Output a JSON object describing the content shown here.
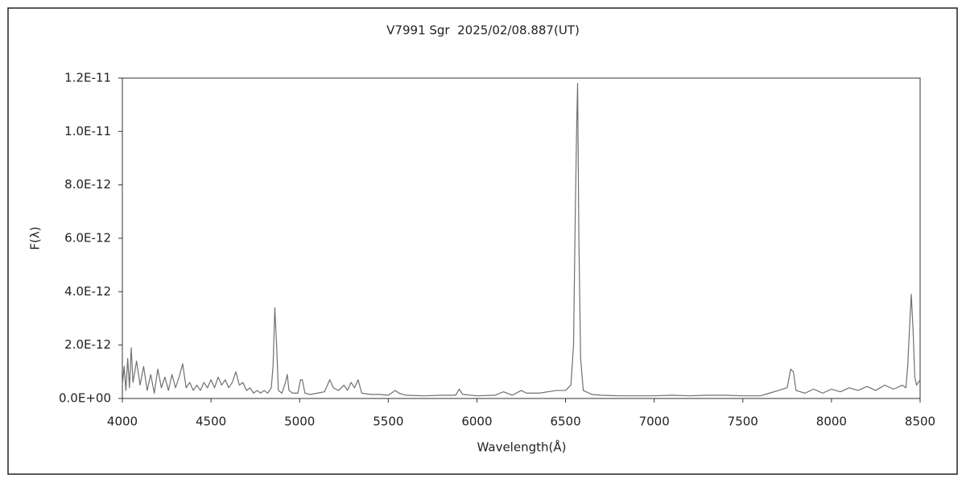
{
  "chart_data": {
    "type": "line",
    "title": "V7991 Sgr  2025/02/08.887(UT)",
    "xlabel": "Wavelength(Å)",
    "ylabel": "F(λ)",
    "color": "#707070",
    "xlim": [
      4000,
      8500
    ],
    "xticks": [
      4000,
      4500,
      5000,
      5500,
      6000,
      6500,
      7000,
      7500,
      8000,
      8500
    ],
    "ylim": [
      0,
      1.2e-11
    ],
    "yticks": [
      {
        "value": 0,
        "label": "0.0E+00"
      },
      {
        "value": 2e-12,
        "label": "2.0E-12"
      },
      {
        "value": 4e-12,
        "label": "4.0E-12"
      },
      {
        "value": 6e-12,
        "label": "6.0E-12"
      },
      {
        "value": 8e-12,
        "label": "8.0E-12"
      },
      {
        "value": 1e-11,
        "label": "1.0E-11"
      },
      {
        "value": 1.2e-11,
        "label": "1.2E-11"
      }
    ],
    "grid": false,
    "x": [
      4000,
      4010,
      4020,
      4030,
      4040,
      4050,
      4060,
      4080,
      4100,
      4120,
      4140,
      4160,
      4180,
      4200,
      4220,
      4240,
      4260,
      4280,
      4300,
      4320,
      4340,
      4360,
      4380,
      4400,
      4420,
      4440,
      4460,
      4480,
      4500,
      4520,
      4540,
      4560,
      4580,
      4600,
      4620,
      4640,
      4660,
      4680,
      4700,
      4720,
      4740,
      4760,
      4780,
      4800,
      4820,
      4840,
      4850,
      4860,
      4870,
      4880,
      4900,
      4920,
      4930,
      4940,
      4960,
      4990,
      5005,
      5015,
      5030,
      5060,
      5100,
      5140,
      5170,
      5190,
      5220,
      5250,
      5270,
      5290,
      5310,
      5330,
      5350,
      5400,
      5450,
      5500,
      5540,
      5560,
      5600,
      5700,
      5800,
      5880,
      5900,
      5920,
      6000,
      6100,
      6150,
      6200,
      6250,
      6280,
      6300,
      6350,
      6400,
      6450,
      6500,
      6530,
      6545,
      6555,
      6563,
      6568,
      6575,
      6585,
      6600,
      6650,
      6700,
      6800,
      6900,
      7000,
      7100,
      7200,
      7300,
      7400,
      7500,
      7600,
      7650,
      7700,
      7750,
      7770,
      7785,
      7800,
      7850,
      7900,
      7950,
      8000,
      8050,
      8100,
      8150,
      8200,
      8250,
      8300,
      8350,
      8400,
      8420,
      8430,
      8440,
      8450,
      8460,
      8470,
      8480,
      8490,
      8500
    ],
    "values": [
      5e-13,
      1.2e-12,
      3e-13,
      1.5e-12,
      4e-13,
      1.9e-12,
      6e-13,
      1.4e-12,
      5e-13,
      1.2e-12,
      3e-13,
      9e-13,
      2e-13,
      1.1e-12,
      4e-13,
      8e-13,
      3e-13,
      9e-13,
      4e-13,
      8e-13,
      1.3e-12,
      4e-13,
      6e-13,
      3e-13,
      5e-13,
      3e-13,
      6e-13,
      4e-13,
      7e-13,
      4e-13,
      8e-13,
      5e-13,
      7e-13,
      4e-13,
      6e-13,
      1e-12,
      5e-13,
      6e-13,
      3e-13,
      4e-13,
      2e-13,
      3e-13,
      2e-13,
      3e-13,
      2e-13,
      4e-13,
      1.2e-12,
      3.4e-12,
      2e-12,
      3e-13,
      2e-13,
      6e-13,
      9e-13,
      3e-13,
      2e-13,
      2e-13,
      7e-13,
      7e-13,
      2e-13,
      1.5e-13,
      2e-13,
      2.5e-13,
      7e-13,
      4e-13,
      3e-13,
      5e-13,
      3e-13,
      6e-13,
      4e-13,
      7e-13,
      2e-13,
      1.5e-13,
      1.5e-13,
      1.2e-13,
      3e-13,
      2e-13,
      1.2e-13,
      1e-13,
      1.2e-13,
      1.2e-13,
      3.5e-13,
      1.5e-13,
      1e-13,
      1.2e-13,
      2.5e-13,
      1.2e-13,
      3e-13,
      2e-13,
      2e-13,
      2e-13,
      2.5e-13,
      3e-13,
      3e-13,
      5e-13,
      2e-12,
      7e-12,
      1.03e-11,
      1.18e-11,
      6e-12,
      1.5e-12,
      3e-13,
      1.5e-13,
      1.2e-13,
      1e-13,
      1e-13,
      1e-13,
      1.2e-13,
      1e-13,
      1.2e-13,
      1.2e-13,
      1e-13,
      1e-13,
      2e-13,
      3e-13,
      4e-13,
      1.1e-12,
      1e-12,
      3e-13,
      2e-13,
      3.5e-13,
      2e-13,
      3.5e-13,
      2.5e-13,
      4e-13,
      3e-13,
      4.5e-13,
      3e-13,
      5e-13,
      3.5e-13,
      5e-13,
      4e-13,
      1.2e-12,
      2.6e-12,
      3.9e-12,
      2.6e-12,
      8e-13,
      5e-13,
      6e-13,
      7e-13
    ]
  }
}
